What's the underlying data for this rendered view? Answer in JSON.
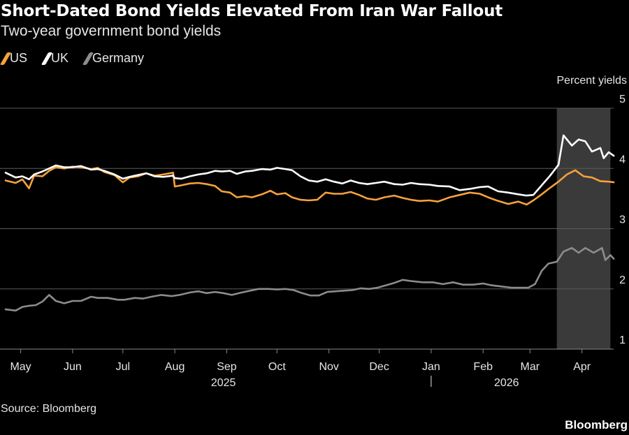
{
  "header": {
    "title": "Short-Dated Bond Yields Elevated From Iran War Fallout",
    "subtitle": "Two-year government bond yields"
  },
  "footer": {
    "source": "Source: Bloomberg",
    "brand": "Bloomberg"
  },
  "colors": {
    "background": "#000000",
    "US": "#f7a13a",
    "UK": "#ffffff",
    "Germany": "#8c8c8c",
    "grid": "#5a5a5a",
    "highlight": "#3a3a3a"
  },
  "chart_data": {
    "type": "line",
    "ylabel": "Percent yields",
    "ylim": [
      1,
      5
    ],
    "yticks": [
      "1",
      "2",
      "3",
      "4",
      "5"
    ],
    "xlim": [
      "2025-04-22",
      "2026-04-22"
    ],
    "x_tick_labels": [
      {
        "label": "May",
        "date": "2025-05-01"
      },
      {
        "label": "Jun",
        "date": "2025-06-01"
      },
      {
        "label": "Jul",
        "date": "2025-07-01"
      },
      {
        "label": "Aug",
        "date": "2025-08-01"
      },
      {
        "label": "Sep",
        "date": "2025-09-01"
      },
      {
        "label": "Oct",
        "date": "2025-10-01"
      },
      {
        "label": "Nov",
        "date": "2025-11-01"
      },
      {
        "label": "Dec",
        "date": "2025-12-01"
      },
      {
        "label": "Jan",
        "date": "2026-01-01"
      },
      {
        "label": "Feb",
        "date": "2026-02-01"
      },
      {
        "label": "Mar",
        "date": "2026-03-01"
      },
      {
        "label": "Apr",
        "date": "2026-04-01"
      }
    ],
    "year_labels": [
      {
        "label": "2025",
        "date": "2025-08-30"
      },
      {
        "label": "2026",
        "date": "2026-02-15"
      }
    ],
    "year_divider_date": "2026-01-01",
    "shaded_region": [
      "2026-03-17",
      "2026-04-18"
    ],
    "legend_position": "top-left",
    "grid": true,
    "series": [
      {
        "name": "US",
        "color": "#f7a13a",
        "points": [
          [
            "2025-04-22",
            3.8
          ],
          [
            "2025-04-28",
            3.76
          ],
          [
            "2025-05-02",
            3.82
          ],
          [
            "2025-05-06",
            3.67
          ],
          [
            "2025-05-09",
            3.88
          ],
          [
            "2025-05-14",
            3.87
          ],
          [
            "2025-05-18",
            3.96
          ],
          [
            "2025-05-22",
            4.02
          ],
          [
            "2025-05-27",
            4.0
          ],
          [
            "2025-06-01",
            4.03
          ],
          [
            "2025-06-06",
            4.02
          ],
          [
            "2025-06-12",
            3.99
          ],
          [
            "2025-06-16",
            4.01
          ],
          [
            "2025-06-20",
            3.94
          ],
          [
            "2025-06-26",
            3.89
          ],
          [
            "2025-07-01",
            3.77
          ],
          [
            "2025-07-05",
            3.85
          ],
          [
            "2025-07-10",
            3.87
          ],
          [
            "2025-07-15",
            3.92
          ],
          [
            "2025-07-20",
            3.88
          ],
          [
            "2025-07-25",
            3.9
          ],
          [
            "2025-07-31",
            3.93
          ],
          [
            "2025-08-01",
            3.7
          ],
          [
            "2025-08-05",
            3.72
          ],
          [
            "2025-08-10",
            3.75
          ],
          [
            "2025-08-15",
            3.76
          ],
          [
            "2025-08-20",
            3.74
          ],
          [
            "2025-08-25",
            3.71
          ],
          [
            "2025-08-29",
            3.62
          ],
          [
            "2025-09-03",
            3.6
          ],
          [
            "2025-09-07",
            3.52
          ],
          [
            "2025-09-12",
            3.54
          ],
          [
            "2025-09-16",
            3.52
          ],
          [
            "2025-09-22",
            3.57
          ],
          [
            "2025-09-27",
            3.63
          ],
          [
            "2025-10-01",
            3.57
          ],
          [
            "2025-10-06",
            3.59
          ],
          [
            "2025-10-10",
            3.52
          ],
          [
            "2025-10-15",
            3.48
          ],
          [
            "2025-10-20",
            3.47
          ],
          [
            "2025-10-25",
            3.48
          ],
          [
            "2025-10-30",
            3.6
          ],
          [
            "2025-11-04",
            3.58
          ],
          [
            "2025-11-09",
            3.58
          ],
          [
            "2025-11-14",
            3.61
          ],
          [
            "2025-11-19",
            3.56
          ],
          [
            "2025-11-24",
            3.5
          ],
          [
            "2025-11-29",
            3.48
          ],
          [
            "2025-12-04",
            3.52
          ],
          [
            "2025-12-10",
            3.55
          ],
          [
            "2025-12-15",
            3.51
          ],
          [
            "2025-12-20",
            3.48
          ],
          [
            "2025-12-25",
            3.46
          ],
          [
            "2025-12-31",
            3.47
          ],
          [
            "2026-01-05",
            3.45
          ],
          [
            "2026-01-12",
            3.52
          ],
          [
            "2026-01-18",
            3.56
          ],
          [
            "2026-01-24",
            3.6
          ],
          [
            "2026-01-30",
            3.58
          ],
          [
            "2026-02-04",
            3.52
          ],
          [
            "2026-02-10",
            3.46
          ],
          [
            "2026-02-16",
            3.41
          ],
          [
            "2026-02-22",
            3.45
          ],
          [
            "2026-02-27",
            3.4
          ],
          [
            "2026-03-03",
            3.47
          ],
          [
            "2026-03-08",
            3.57
          ],
          [
            "2026-03-13",
            3.68
          ],
          [
            "2026-03-18",
            3.78
          ],
          [
            "2026-03-23",
            3.9
          ],
          [
            "2026-03-28",
            3.97
          ],
          [
            "2026-04-02",
            3.87
          ],
          [
            "2026-04-07",
            3.85
          ],
          [
            "2026-04-12",
            3.79
          ],
          [
            "2026-04-17",
            3.78
          ],
          [
            "2026-04-20",
            3.77
          ]
        ]
      },
      {
        "name": "UK",
        "color": "#ffffff",
        "points": [
          [
            "2025-04-22",
            3.93
          ],
          [
            "2025-04-28",
            3.85
          ],
          [
            "2025-05-02",
            3.87
          ],
          [
            "2025-05-06",
            3.82
          ],
          [
            "2025-05-09",
            3.9
          ],
          [
            "2025-05-14",
            3.95
          ],
          [
            "2025-05-18",
            4.0
          ],
          [
            "2025-05-22",
            4.05
          ],
          [
            "2025-05-27",
            4.02
          ],
          [
            "2025-06-01",
            4.02
          ],
          [
            "2025-06-06",
            4.04
          ],
          [
            "2025-06-12",
            3.98
          ],
          [
            "2025-06-16",
            3.99
          ],
          [
            "2025-06-20",
            3.96
          ],
          [
            "2025-06-26",
            3.9
          ],
          [
            "2025-07-01",
            3.83
          ],
          [
            "2025-07-05",
            3.86
          ],
          [
            "2025-07-10",
            3.89
          ],
          [
            "2025-07-15",
            3.92
          ],
          [
            "2025-07-20",
            3.87
          ],
          [
            "2025-07-25",
            3.86
          ],
          [
            "2025-07-31",
            3.88
          ],
          [
            "2025-08-01",
            3.84
          ],
          [
            "2025-08-05",
            3.83
          ],
          [
            "2025-08-10",
            3.87
          ],
          [
            "2025-08-15",
            3.9
          ],
          [
            "2025-08-20",
            3.92
          ],
          [
            "2025-08-25",
            3.96
          ],
          [
            "2025-08-29",
            3.95
          ],
          [
            "2025-09-03",
            3.96
          ],
          [
            "2025-09-07",
            3.91
          ],
          [
            "2025-09-12",
            3.95
          ],
          [
            "2025-09-16",
            3.96
          ],
          [
            "2025-09-22",
            3.99
          ],
          [
            "2025-09-27",
            3.98
          ],
          [
            "2025-10-01",
            4.01
          ],
          [
            "2025-10-06",
            3.99
          ],
          [
            "2025-10-10",
            3.97
          ],
          [
            "2025-10-15",
            3.87
          ],
          [
            "2025-10-20",
            3.8
          ],
          [
            "2025-10-25",
            3.78
          ],
          [
            "2025-10-30",
            3.82
          ],
          [
            "2025-11-04",
            3.78
          ],
          [
            "2025-11-09",
            3.75
          ],
          [
            "2025-11-14",
            3.8
          ],
          [
            "2025-11-19",
            3.76
          ],
          [
            "2025-11-24",
            3.74
          ],
          [
            "2025-11-29",
            3.76
          ],
          [
            "2025-12-04",
            3.78
          ],
          [
            "2025-12-10",
            3.74
          ],
          [
            "2025-12-15",
            3.73
          ],
          [
            "2025-12-20",
            3.76
          ],
          [
            "2025-12-25",
            3.74
          ],
          [
            "2025-12-31",
            3.73
          ],
          [
            "2026-01-05",
            3.71
          ],
          [
            "2026-01-12",
            3.7
          ],
          [
            "2026-01-18",
            3.64
          ],
          [
            "2026-01-24",
            3.66
          ],
          [
            "2026-01-30",
            3.69
          ],
          [
            "2026-02-04",
            3.7
          ],
          [
            "2026-02-10",
            3.62
          ],
          [
            "2026-02-16",
            3.6
          ],
          [
            "2026-02-22",
            3.57
          ],
          [
            "2026-02-27",
            3.55
          ],
          [
            "2026-03-03",
            3.56
          ],
          [
            "2026-03-08",
            3.72
          ],
          [
            "2026-03-13",
            3.88
          ],
          [
            "2026-03-18",
            4.06
          ],
          [
            "2026-03-21",
            4.55
          ],
          [
            "2026-03-26",
            4.38
          ],
          [
            "2026-03-30",
            4.48
          ],
          [
            "2026-04-03",
            4.45
          ],
          [
            "2026-04-07",
            4.28
          ],
          [
            "2026-04-12",
            4.34
          ],
          [
            "2026-04-14",
            4.17
          ],
          [
            "2026-04-17",
            4.27
          ],
          [
            "2026-04-20",
            4.21
          ]
        ]
      },
      {
        "name": "Germany",
        "color": "#8c8c8c",
        "points": [
          [
            "2025-04-22",
            1.66
          ],
          [
            "2025-04-28",
            1.64
          ],
          [
            "2025-05-02",
            1.7
          ],
          [
            "2025-05-06",
            1.72
          ],
          [
            "2025-05-10",
            1.73
          ],
          [
            "2025-05-14",
            1.79
          ],
          [
            "2025-05-18",
            1.9
          ],
          [
            "2025-05-22",
            1.8
          ],
          [
            "2025-05-27",
            1.76
          ],
          [
            "2025-06-01",
            1.8
          ],
          [
            "2025-06-06",
            1.8
          ],
          [
            "2025-06-12",
            1.87
          ],
          [
            "2025-06-16",
            1.85
          ],
          [
            "2025-06-22",
            1.85
          ],
          [
            "2025-06-28",
            1.82
          ],
          [
            "2025-07-02",
            1.82
          ],
          [
            "2025-07-08",
            1.85
          ],
          [
            "2025-07-13",
            1.84
          ],
          [
            "2025-07-18",
            1.87
          ],
          [
            "2025-07-24",
            1.9
          ],
          [
            "2025-07-30",
            1.88
          ],
          [
            "2025-08-04",
            1.9
          ],
          [
            "2025-08-10",
            1.94
          ],
          [
            "2025-08-15",
            1.96
          ],
          [
            "2025-08-20",
            1.93
          ],
          [
            "2025-08-25",
            1.95
          ],
          [
            "2025-08-30",
            1.93
          ],
          [
            "2025-09-04",
            1.9
          ],
          [
            "2025-09-10",
            1.94
          ],
          [
            "2025-09-15",
            1.97
          ],
          [
            "2025-09-20",
            2.0
          ],
          [
            "2025-09-26",
            2.0
          ],
          [
            "2025-10-01",
            1.99
          ],
          [
            "2025-10-06",
            2.0
          ],
          [
            "2025-10-11",
            1.98
          ],
          [
            "2025-10-16",
            1.93
          ],
          [
            "2025-10-21",
            1.89
          ],
          [
            "2025-10-26",
            1.89
          ],
          [
            "2025-10-31",
            1.95
          ],
          [
            "2025-11-05",
            1.96
          ],
          [
            "2025-11-10",
            1.97
          ],
          [
            "2025-11-15",
            1.98
          ],
          [
            "2025-11-20",
            2.01
          ],
          [
            "2025-11-25",
            2.0
          ],
          [
            "2025-11-30",
            2.02
          ],
          [
            "2025-12-05",
            2.06
          ],
          [
            "2025-12-10",
            2.1
          ],
          [
            "2025-12-15",
            2.15
          ],
          [
            "2025-12-20",
            2.13
          ],
          [
            "2025-12-27",
            2.11
          ],
          [
            "2026-01-02",
            2.11
          ],
          [
            "2026-01-08",
            2.08
          ],
          [
            "2026-01-14",
            2.11
          ],
          [
            "2026-01-20",
            2.07
          ],
          [
            "2026-01-26",
            2.07
          ],
          [
            "2026-02-01",
            2.09
          ],
          [
            "2026-02-06",
            2.06
          ],
          [
            "2026-02-12",
            2.04
          ],
          [
            "2026-02-18",
            2.02
          ],
          [
            "2026-02-24",
            2.02
          ],
          [
            "2026-02-28",
            2.02
          ],
          [
            "2026-03-04",
            2.08
          ],
          [
            "2026-03-08",
            2.3
          ],
          [
            "2026-03-12",
            2.42
          ],
          [
            "2026-03-17",
            2.45
          ],
          [
            "2026-03-21",
            2.62
          ],
          [
            "2026-03-26",
            2.68
          ],
          [
            "2026-03-30",
            2.6
          ],
          [
            "2026-04-03",
            2.68
          ],
          [
            "2026-04-08",
            2.6
          ],
          [
            "2026-04-13",
            2.68
          ],
          [
            "2026-04-15",
            2.48
          ],
          [
            "2026-04-18",
            2.56
          ],
          [
            "2026-04-20",
            2.5
          ]
        ]
      }
    ]
  }
}
